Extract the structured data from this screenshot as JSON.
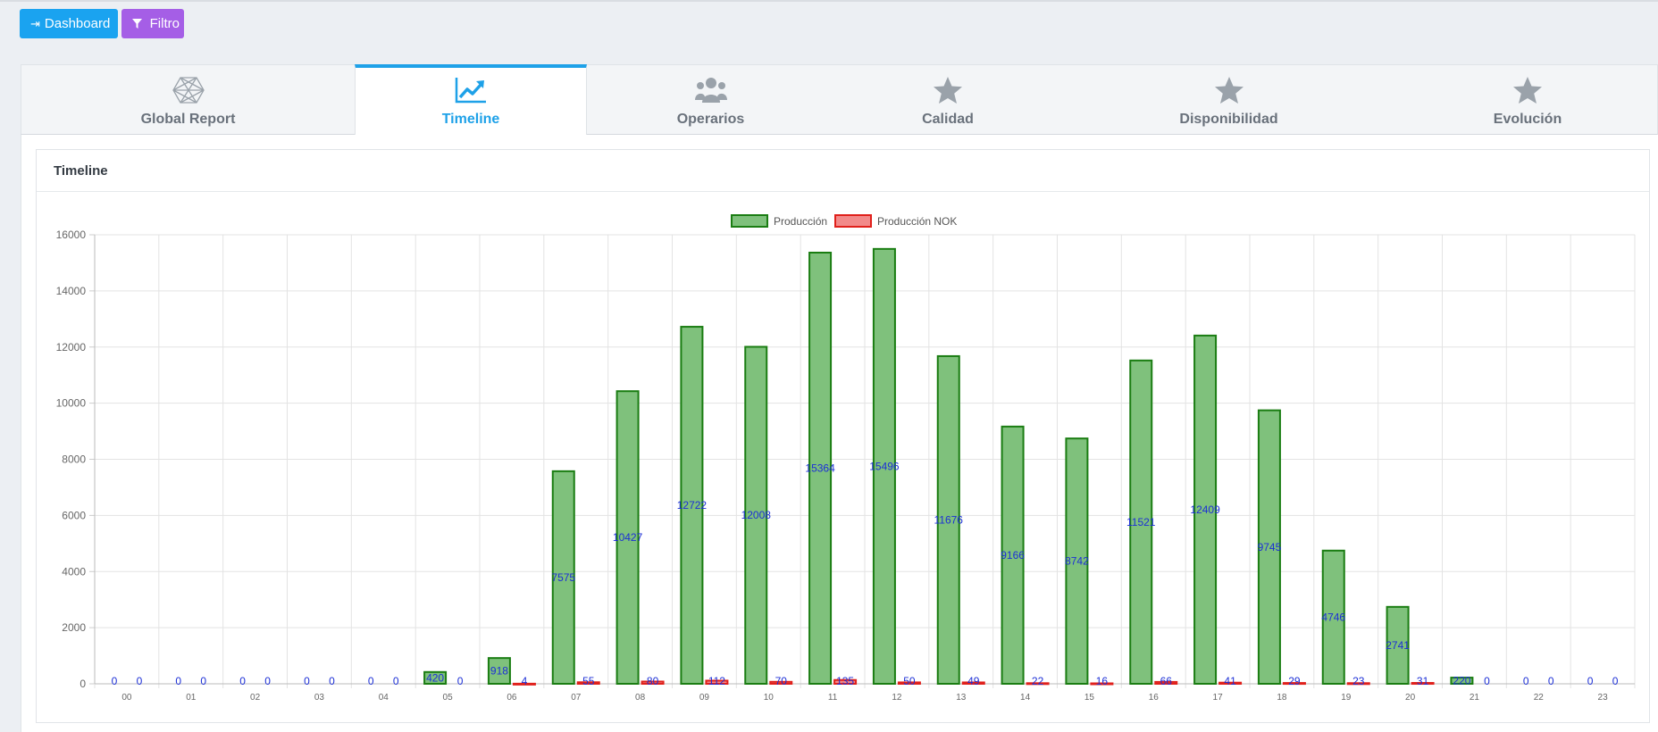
{
  "toolbar": {
    "dashboard_label": "Dashboard",
    "dashboard_icon": "sign-out-icon",
    "filtro_label": "Filtro",
    "filtro_icon": "filter-icon",
    "dashboard_color": "#1aa3f0",
    "filtro_color": "#a55ee6"
  },
  "tabs": [
    {
      "label": "Global Report",
      "icon": "hexagon-mesh-icon",
      "active": false
    },
    {
      "label": "Timeline",
      "icon": "line-chart-icon",
      "active": true
    },
    {
      "label": "Operarios",
      "icon": "users-icon",
      "active": false
    },
    {
      "label": "Calidad",
      "icon": "star-icon",
      "active": false
    },
    {
      "label": "Disponibilidad",
      "icon": "star-icon",
      "active": false
    },
    {
      "label": "Evolución",
      "icon": "star-icon",
      "active": false
    }
  ],
  "panel": {
    "title": "Timeline"
  },
  "colors": {
    "accent": "#1ea1e8",
    "bar_ok": "#7fc17c",
    "bar_ok_border": "#1a7d12",
    "bar_nok": "#f28a8a",
    "bar_nok_border": "#e0201b",
    "data_label": "#1c2fd6"
  },
  "chart_data": {
    "type": "bar",
    "categories": [
      "00",
      "01",
      "02",
      "03",
      "04",
      "05",
      "06",
      "07",
      "08",
      "09",
      "10",
      "11",
      "12",
      "13",
      "14",
      "15",
      "16",
      "17",
      "18",
      "19",
      "20",
      "21",
      "22",
      "23"
    ],
    "series": [
      {
        "name": "Producción",
        "values": [
          0,
          0,
          0,
          0,
          0,
          420,
          918,
          7575,
          10427,
          12722,
          12008,
          15364,
          15496,
          11676,
          9166,
          8742,
          11521,
          12409,
          9745,
          4746,
          2741,
          220,
          0,
          0
        ]
      },
      {
        "name": "Producción NOK",
        "values": [
          0,
          0,
          0,
          0,
          0,
          0,
          4,
          55,
          80,
          112,
          70,
          135,
          50,
          49,
          22,
          16,
          66,
          41,
          29,
          23,
          31,
          0,
          0,
          0
        ]
      }
    ],
    "ylim": [
      0,
      16000
    ],
    "yticks": [
      "0",
      "2000",
      "4000",
      "6000",
      "8000",
      "10000",
      "12000",
      "14000",
      "16000"
    ],
    "grid": true,
    "legend": "top-center",
    "data_labels": true
  }
}
